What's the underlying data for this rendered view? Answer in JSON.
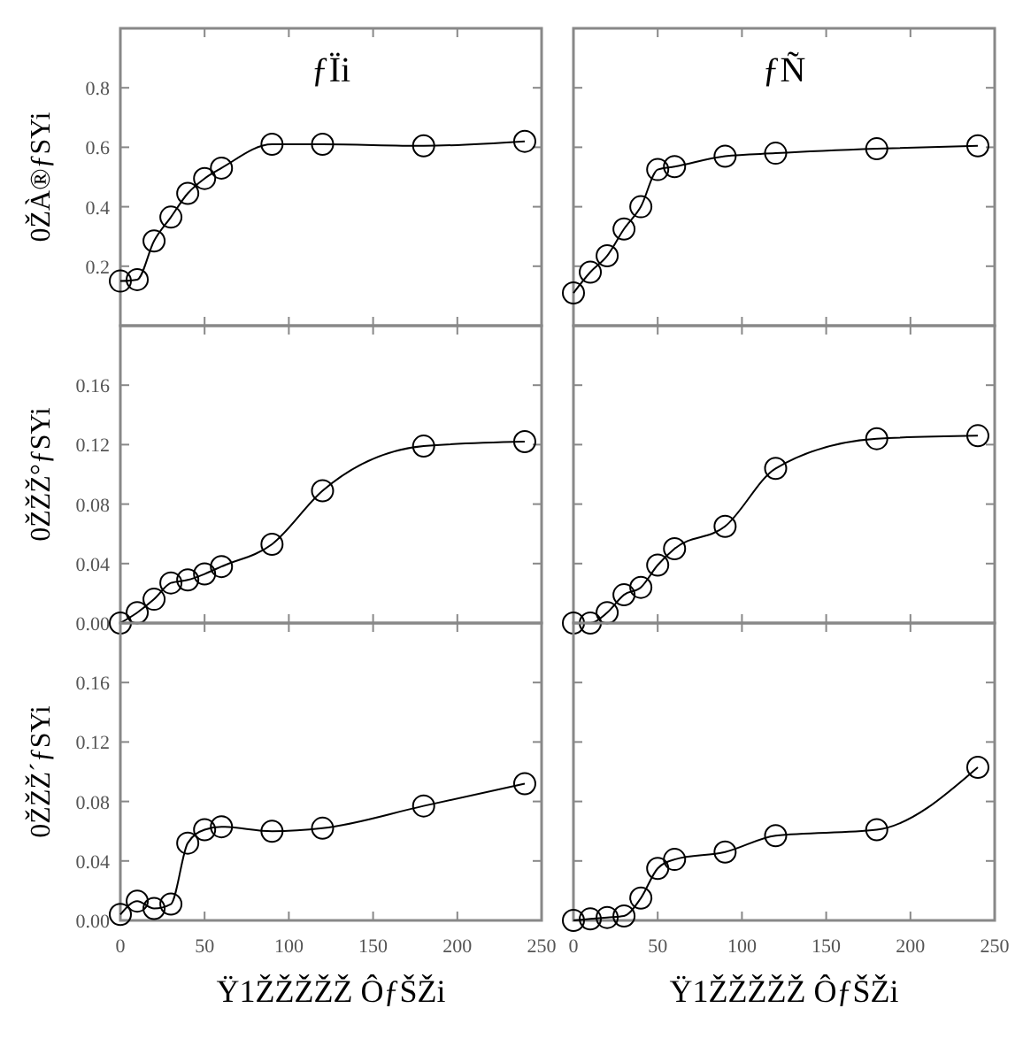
{
  "chart_data": [
    {
      "type": "line",
      "title": "ƒÏi",
      "ylabel": "0ŽÀ®ƒSYi",
      "x": [
        0,
        10,
        20,
        30,
        40,
        50,
        60,
        90,
        120,
        180,
        240
      ],
      "xlim": [
        0,
        250
      ],
      "xticks": [
        0,
        50,
        100,
        150,
        200,
        250
      ],
      "ylim": [
        0,
        1
      ],
      "yticks": [
        {
          "value": 0,
          "label": null
        },
        0.2,
        0.4,
        0.6,
        0.8,
        {
          "value": 1,
          "label": null
        }
      ],
      "tick_labels": "y",
      "marker": "circle",
      "series": [
        {
          "color": "#000000",
          "values": [
            0.15,
            0.155,
            0.285,
            0.365,
            0.445,
            0.495,
            0.53,
            0.61,
            0.61,
            0.605,
            0.62
          ]
        }
      ]
    },
    {
      "type": "line",
      "title": "ƒÑ",
      "x": [
        0,
        10,
        20,
        30,
        40,
        50,
        60,
        90,
        120,
        180,
        240
      ],
      "xlim": [
        0,
        250
      ],
      "xticks": [
        0,
        50,
        100,
        150,
        200,
        250
      ],
      "ylim": [
        0,
        1
      ],
      "yticks": [
        0,
        0.2,
        0.4,
        0.6,
        0.8,
        1
      ],
      "tick_labels": false,
      "marker": "circle",
      "series": [
        {
          "color": "#000000",
          "values": [
            0.11,
            0.18,
            0.235,
            0.325,
            0.4,
            0.525,
            0.535,
            0.57,
            0.58,
            0.595,
            0.605
          ]
        }
      ]
    },
    {
      "type": "line",
      "ylabel": "0ŽŽŽ°ƒSYi",
      "x": [
        0,
        10,
        20,
        30,
        40,
        50,
        60,
        90,
        120,
        180,
        240
      ],
      "xlim": [
        0,
        250
      ],
      "xticks": [
        0,
        50,
        100,
        150,
        200,
        250
      ],
      "ylim": [
        0,
        0.2
      ],
      "yticks": [
        {
          "value": 0,
          "label": "0.00"
        },
        0.04,
        0.08,
        0.12,
        0.16,
        {
          "value": 0.2,
          "label": null
        }
      ],
      "tick_labels": "y",
      "marker": "circle",
      "series": [
        {
          "color": "#000000",
          "values": [
            0,
            0.007,
            0.016,
            0.027,
            0.029,
            0.033,
            0.038,
            0.053,
            0.089,
            0.119,
            0.122
          ]
        }
      ]
    },
    {
      "type": "line",
      "x": [
        0,
        10,
        20,
        30,
        40,
        50,
        60,
        90,
        120,
        180,
        240
      ],
      "xlim": [
        0,
        250
      ],
      "xticks": [
        0,
        50,
        100,
        150,
        200,
        250
      ],
      "ylim": [
        0,
        0.2
      ],
      "yticks": [
        0,
        0.04,
        0.08,
        0.12,
        0.16,
        0.2
      ],
      "tick_labels": false,
      "marker": "circle",
      "series": [
        {
          "color": "#000000",
          "values": [
            0,
            0,
            0.007,
            0.019,
            0.024,
            0.039,
            0.05,
            0.065,
            0.104,
            0.124,
            0.126
          ]
        }
      ]
    },
    {
      "type": "line",
      "ylabel": "0ŽŽŽ´ƒSYi",
      "xlabel": "Ÿ1ŽŽŽŽŽ ÔƒŠŽi",
      "x": [
        0,
        10,
        20,
        30,
        40,
        50,
        60,
        90,
        120,
        180,
        240
      ],
      "xlim": [
        0,
        250
      ],
      "xticks": [
        0,
        50,
        100,
        150,
        200,
        250
      ],
      "ylim": [
        0,
        0.2
      ],
      "yticks": [
        {
          "value": 0,
          "label": "0.00"
        },
        0.04,
        0.08,
        0.12,
        0.16,
        {
          "value": 0.2,
          "label": null
        }
      ],
      "marker": "circle",
      "series": [
        {
          "color": "#000000",
          "values": [
            0.004,
            0.013,
            0.008,
            0.011,
            0.052,
            0.061,
            0.063,
            0.06,
            0.062,
            0.077,
            0.092
          ]
        }
      ]
    },
    {
      "type": "line",
      "xlabel": "Ÿ1ŽŽŽŽŽ ÔƒŠŽi",
      "x": [
        0,
        10,
        20,
        30,
        40,
        50,
        60,
        90,
        120,
        180,
        240
      ],
      "xlim": [
        0,
        250
      ],
      "xticks": [
        0,
        50,
        100,
        150,
        200,
        250
      ],
      "ylim": [
        0,
        0.2
      ],
      "yticks": [
        0,
        0.04,
        0.08,
        0.12,
        0.16,
        0.2
      ],
      "tick_labels": "x",
      "marker": "circle",
      "series": [
        {
          "color": "#000000",
          "values": [
            0,
            0.001,
            0.002,
            0.003,
            0.015,
            0.035,
            0.041,
            0.046,
            0.057,
            0.061,
            0.103
          ]
        }
      ]
    }
  ]
}
